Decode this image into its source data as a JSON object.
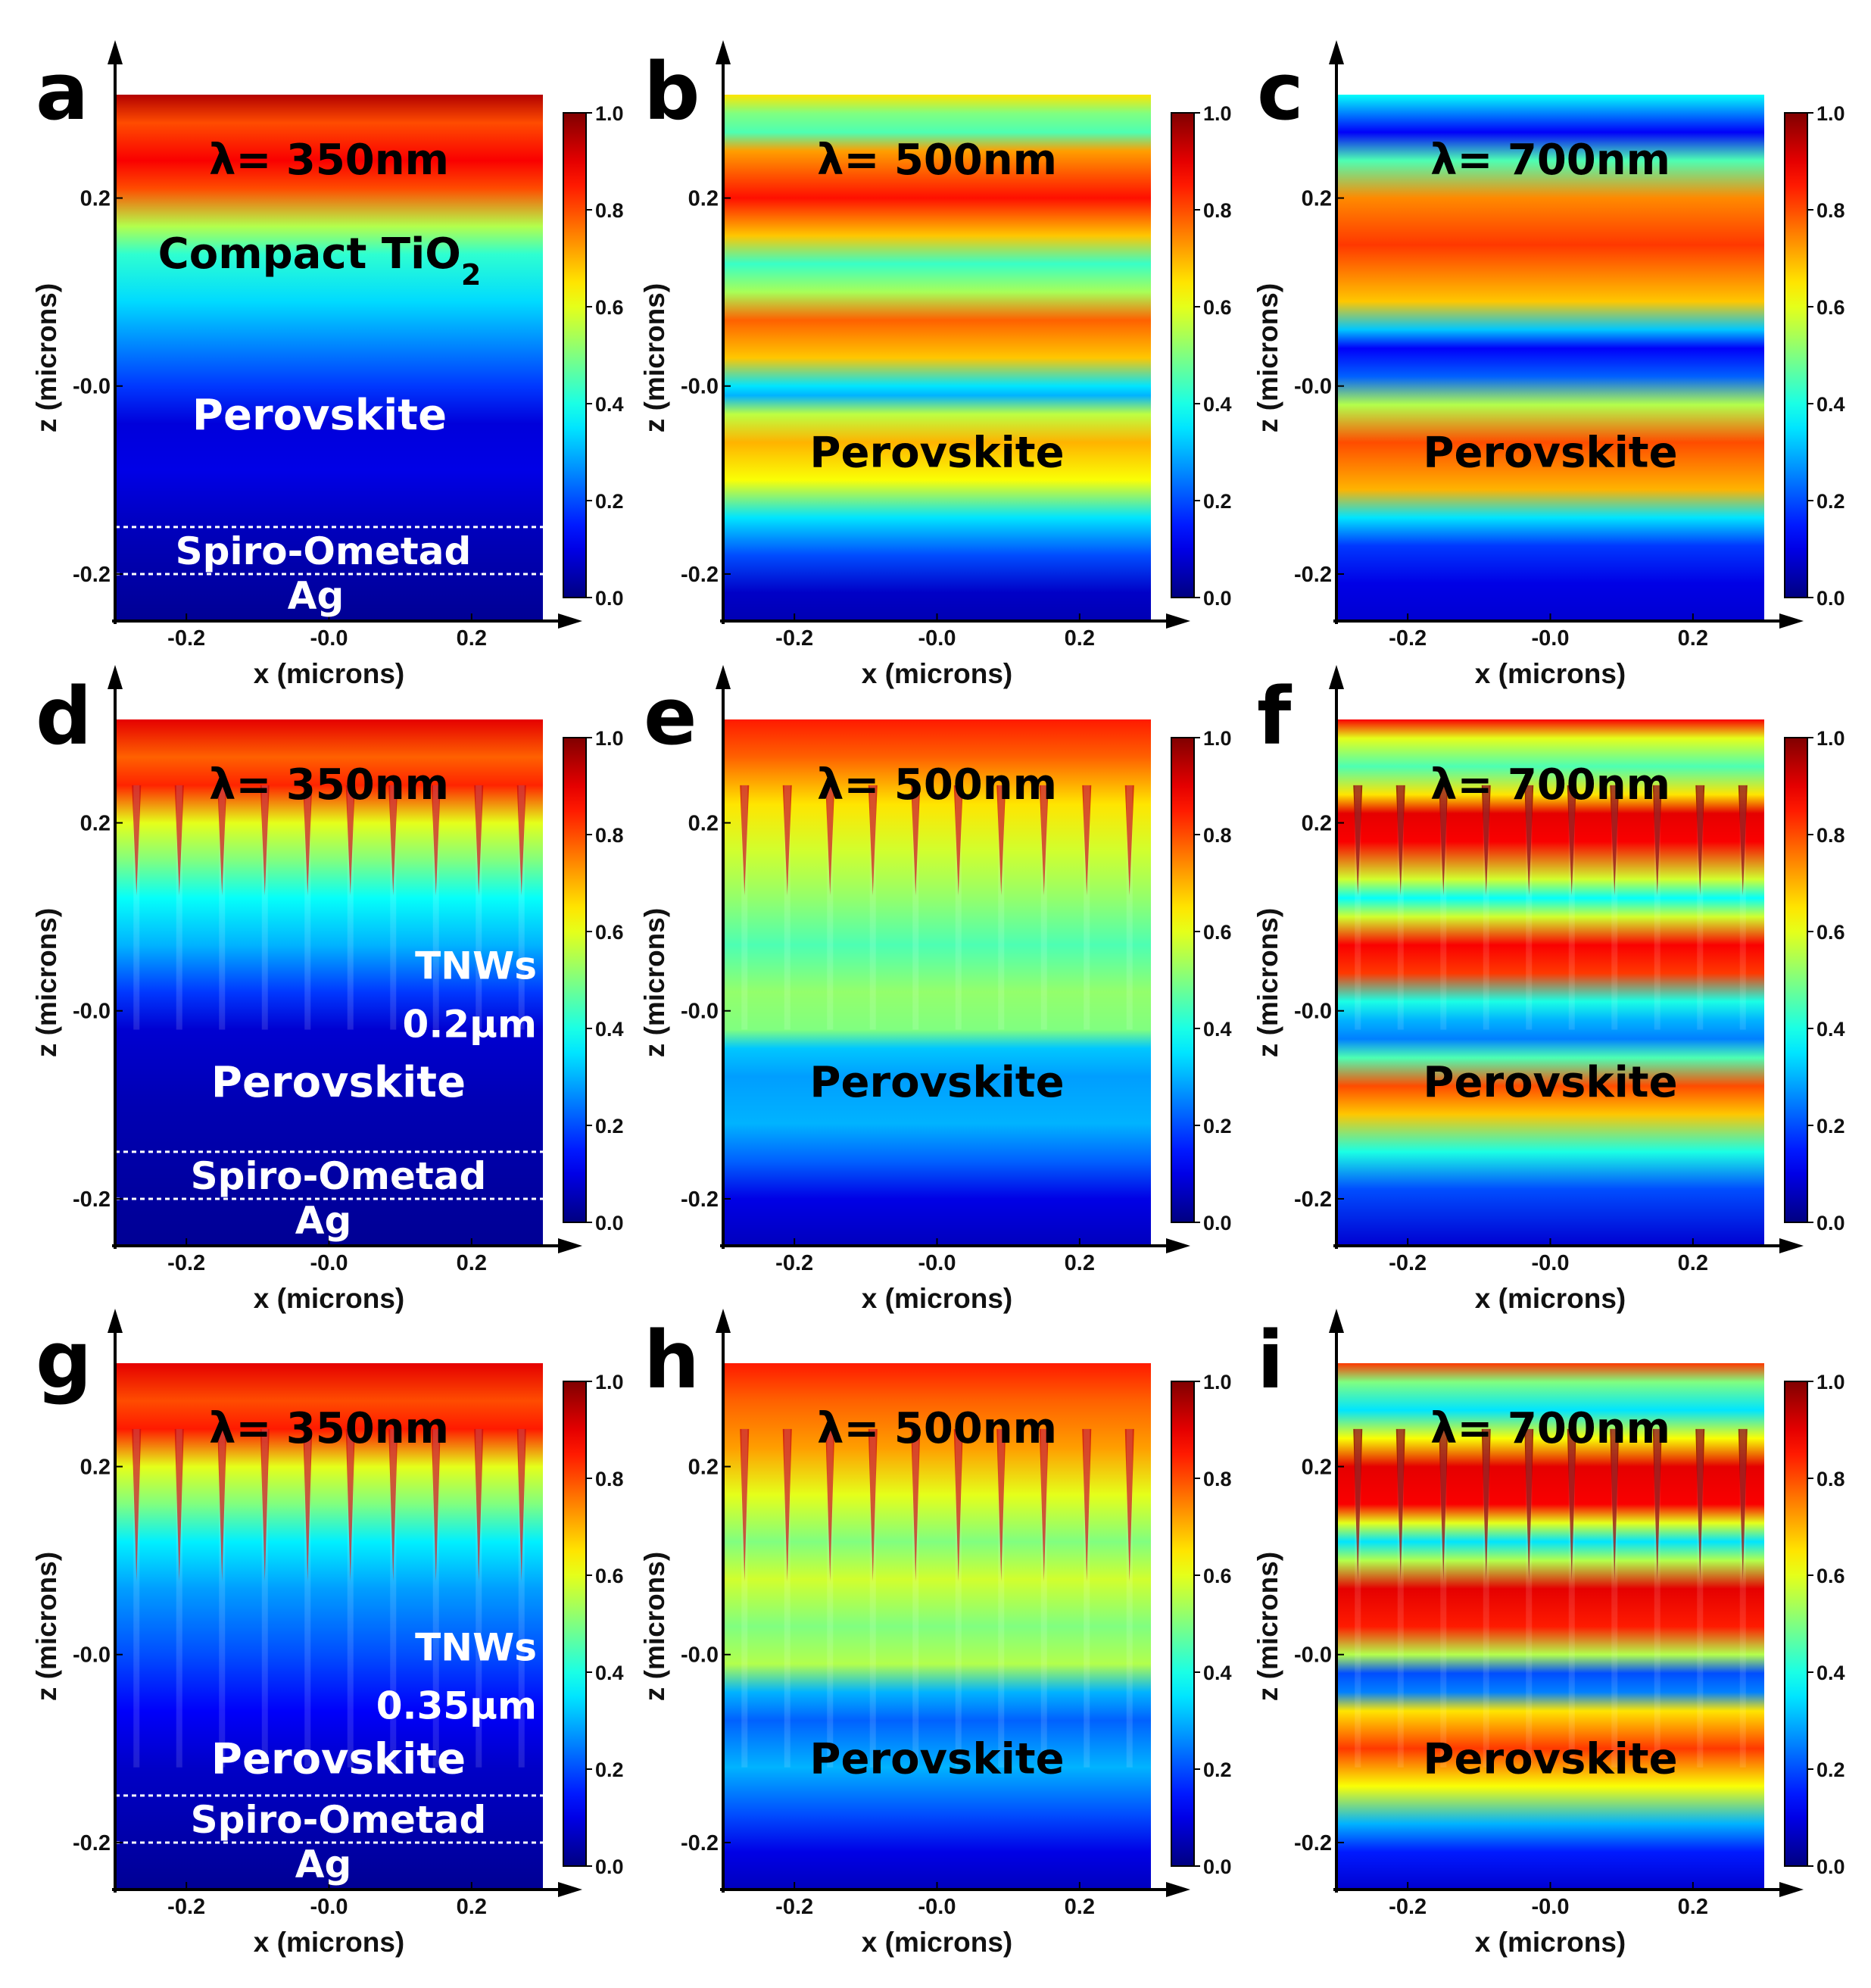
{
  "chart_data": {
    "type": "heatmap",
    "colormap": "jet",
    "xlabel": "x (microns)",
    "ylabel": "z (microns)",
    "xlim": [
      -0.3,
      0.3
    ],
    "ylim": [
      -0.25,
      0.31
    ],
    "x_ticks": [
      "-0.2",
      "-0.0",
      "0.2"
    ],
    "y_ticks": [
      "0.2",
      "-0.0",
      "-0.2"
    ],
    "colorbar_ticks": [
      "1.0",
      "0.8",
      "0.6",
      "0.4",
      "0.2",
      "0.0"
    ],
    "rows": [
      {
        "structure": "planar",
        "nanowire_length": "",
        "nanowire_label": ""
      },
      {
        "structure": "nanowires",
        "nanowire_length": "0.2μm",
        "nanowire_label": "TNWs"
      },
      {
        "structure": "nanowires",
        "nanowire_length": "0.35μm",
        "nanowire_label": "TNWs"
      }
    ],
    "columns": [
      {
        "wavelength_label": "λ= 350nm"
      },
      {
        "wavelength_label": "λ= 500nm"
      },
      {
        "wavelength_label": "λ= 700nm"
      }
    ],
    "panels": [
      {
        "id": "a",
        "letter": "a",
        "wavelength": "λ= 350nm",
        "z_profile": [
          [
            0.31,
            0.95
          ],
          [
            0.28,
            0.8
          ],
          [
            0.24,
            0.88
          ],
          [
            0.21,
            0.8
          ],
          [
            0.17,
            0.55
          ],
          [
            0.14,
            0.42
          ],
          [
            0.09,
            0.34
          ],
          [
            0.04,
            0.25
          ],
          [
            0.0,
            0.18
          ],
          [
            -0.04,
            0.09
          ],
          [
            -0.09,
            0.1
          ],
          [
            -0.15,
            0.06
          ],
          [
            -0.2,
            0.04
          ],
          [
            -0.25,
            0.02
          ]
        ],
        "nanowire_modulation": 0,
        "labels": [
          "Compact TiO",
          "Perovskite",
          "Spiro-Ometad",
          "Ag"
        ]
      },
      {
        "id": "b",
        "letter": "b",
        "wavelength": "λ= 500nm",
        "z_profile": [
          [
            0.31,
            0.65
          ],
          [
            0.29,
            0.5
          ],
          [
            0.27,
            0.45
          ],
          [
            0.25,
            0.72
          ],
          [
            0.2,
            0.86
          ],
          [
            0.16,
            0.68
          ],
          [
            0.13,
            0.43
          ],
          [
            0.1,
            0.54
          ],
          [
            0.07,
            0.78
          ],
          [
            0.03,
            0.68
          ],
          [
            0.0,
            0.35
          ],
          [
            -0.01,
            0.3
          ],
          [
            -0.03,
            0.56
          ],
          [
            -0.06,
            0.7
          ],
          [
            -0.1,
            0.62
          ],
          [
            -0.14,
            0.35
          ],
          [
            -0.18,
            0.2
          ],
          [
            -0.22,
            0.07
          ],
          [
            -0.25,
            0.05
          ]
        ],
        "nanowire_modulation": 0,
        "labels": [
          "Perovskite"
        ]
      },
      {
        "id": "c",
        "letter": "c",
        "wavelength": "λ= 700nm",
        "z_profile": [
          [
            0.31,
            0.38
          ],
          [
            0.29,
            0.25
          ],
          [
            0.27,
            0.12
          ],
          [
            0.24,
            0.45
          ],
          [
            0.2,
            0.74
          ],
          [
            0.15,
            0.82
          ],
          [
            0.09,
            0.68
          ],
          [
            0.06,
            0.32
          ],
          [
            0.04,
            0.12
          ],
          [
            0.01,
            0.22
          ],
          [
            -0.02,
            0.55
          ],
          [
            -0.06,
            0.8
          ],
          [
            -0.11,
            0.7
          ],
          [
            -0.14,
            0.35
          ],
          [
            -0.17,
            0.18
          ],
          [
            -0.21,
            0.1
          ],
          [
            -0.25,
            0.08
          ]
        ],
        "nanowire_modulation": 0,
        "labels": [
          "Perovskite"
        ]
      },
      {
        "id": "d",
        "letter": "d",
        "wavelength": "λ= 350nm",
        "z_profile": [
          [
            0.31,
            0.9
          ],
          [
            0.27,
            0.78
          ],
          [
            0.24,
            0.84
          ],
          [
            0.2,
            0.6
          ],
          [
            0.16,
            0.5
          ],
          [
            0.12,
            0.38
          ],
          [
            0.07,
            0.3
          ],
          [
            0.02,
            0.18
          ],
          [
            -0.02,
            0.08
          ],
          [
            -0.1,
            0.05
          ],
          [
            -0.2,
            0.03
          ],
          [
            -0.25,
            0.02
          ]
        ],
        "nanowire_modulation": 0.25,
        "labels": [
          "TNWs",
          "0.2μm",
          "Perovskite",
          "Spiro-Ometad",
          "Ag"
        ]
      },
      {
        "id": "e",
        "letter": "e",
        "wavelength": "λ= 500nm",
        "z_profile": [
          [
            0.31,
            0.85
          ],
          [
            0.27,
            0.78
          ],
          [
            0.22,
            0.65
          ],
          [
            0.17,
            0.58
          ],
          [
            0.12,
            0.52
          ],
          [
            0.07,
            0.45
          ],
          [
            0.02,
            0.52
          ],
          [
            -0.02,
            0.5
          ],
          [
            -0.04,
            0.32
          ],
          [
            -0.07,
            0.28
          ],
          [
            -0.12,
            0.3
          ],
          [
            -0.16,
            0.22
          ],
          [
            -0.2,
            0.1
          ],
          [
            -0.25,
            0.06
          ]
        ],
        "nanowire_modulation": 0.2,
        "labels": [
          "Perovskite"
        ]
      },
      {
        "id": "f",
        "letter": "f",
        "wavelength": "λ= 700nm",
        "z_profile": [
          [
            0.31,
            0.88
          ],
          [
            0.29,
            0.6
          ],
          [
            0.26,
            0.45
          ],
          [
            0.23,
            0.65
          ],
          [
            0.21,
            0.9
          ],
          [
            0.18,
            0.88
          ],
          [
            0.14,
            0.58
          ],
          [
            0.12,
            0.38
          ],
          [
            0.1,
            0.58
          ],
          [
            0.07,
            0.88
          ],
          [
            0.04,
            0.82
          ],
          [
            0.01,
            0.4
          ],
          [
            -0.01,
            0.3
          ],
          [
            -0.03,
            0.25
          ],
          [
            -0.05,
            0.45
          ],
          [
            -0.08,
            0.8
          ],
          [
            -0.11,
            0.68
          ],
          [
            -0.15,
            0.4
          ],
          [
            -0.19,
            0.2
          ],
          [
            -0.25,
            0.08
          ]
        ],
        "nanowire_modulation": 0.15,
        "labels": [
          "Perovskite"
        ]
      },
      {
        "id": "g",
        "letter": "g",
        "wavelength": "λ= 350nm",
        "z_profile": [
          [
            0.31,
            0.9
          ],
          [
            0.27,
            0.8
          ],
          [
            0.24,
            0.85
          ],
          [
            0.2,
            0.6
          ],
          [
            0.16,
            0.5
          ],
          [
            0.12,
            0.36
          ],
          [
            0.07,
            0.28
          ],
          [
            0.0,
            0.2
          ],
          [
            -0.06,
            0.12
          ],
          [
            -0.12,
            0.07
          ],
          [
            -0.2,
            0.04
          ],
          [
            -0.25,
            0.02
          ]
        ],
        "nanowire_modulation": 0.22,
        "labels": [
          "TNWs",
          "0.35μm",
          "Perovskite",
          "Spiro-Ometad",
          "Ag"
        ]
      },
      {
        "id": "h",
        "letter": "h",
        "wavelength": "λ= 500nm",
        "z_profile": [
          [
            0.31,
            0.85
          ],
          [
            0.27,
            0.78
          ],
          [
            0.22,
            0.72
          ],
          [
            0.17,
            0.6
          ],
          [
            0.12,
            0.5
          ],
          [
            0.08,
            0.58
          ],
          [
            0.03,
            0.5
          ],
          [
            -0.01,
            0.55
          ],
          [
            -0.04,
            0.3
          ],
          [
            -0.07,
            0.22
          ],
          [
            -0.12,
            0.3
          ],
          [
            -0.17,
            0.2
          ],
          [
            -0.21,
            0.1
          ],
          [
            -0.25,
            0.06
          ]
        ],
        "nanowire_modulation": 0.2,
        "labels": [
          "Perovskite"
        ]
      },
      {
        "id": "i",
        "letter": "i",
        "wavelength": "λ= 700nm",
        "z_profile": [
          [
            0.31,
            0.82
          ],
          [
            0.29,
            0.5
          ],
          [
            0.26,
            0.35
          ],
          [
            0.23,
            0.62
          ],
          [
            0.2,
            0.9
          ],
          [
            0.16,
            0.88
          ],
          [
            0.14,
            0.6
          ],
          [
            0.12,
            0.35
          ],
          [
            0.1,
            0.55
          ],
          [
            0.07,
            0.9
          ],
          [
            0.03,
            0.85
          ],
          [
            0.0,
            0.55
          ],
          [
            -0.02,
            0.2
          ],
          [
            -0.04,
            0.25
          ],
          [
            -0.06,
            0.65
          ],
          [
            -0.1,
            0.82
          ],
          [
            -0.14,
            0.62
          ],
          [
            -0.18,
            0.3
          ],
          [
            -0.21,
            0.15
          ],
          [
            -0.25,
            0.08
          ]
        ],
        "nanowire_modulation": 0.15,
        "labels": [
          "Perovskite"
        ]
      }
    ]
  }
}
